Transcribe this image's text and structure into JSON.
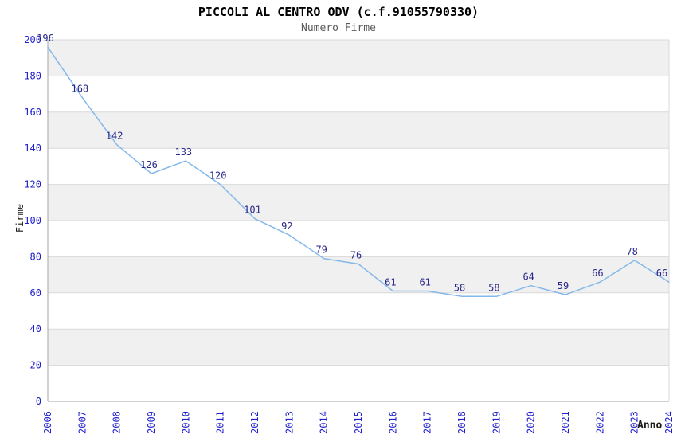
{
  "header": {
    "title": "PICCOLI AL CENTRO ODV (c.f.91055790330)",
    "subtitle": "Numero Firme"
  },
  "axes": {
    "y_label": "Firme",
    "x_label": "Anno"
  },
  "chart_data": {
    "type": "line",
    "title": "PICCOLI AL CENTRO ODV (c.f.91055790330)",
    "subtitle": "Numero Firme",
    "xlabel": "Anno",
    "ylabel": "Firme",
    "x": [
      "2006",
      "2007",
      "2008",
      "2009",
      "2010",
      "2011",
      "2012",
      "2013",
      "2014",
      "2015",
      "2016",
      "2017",
      "2018",
      "2019",
      "2020",
      "2021",
      "2022",
      "2023",
      "2024"
    ],
    "series": [
      {
        "name": "Numero Firme",
        "values": [
          196,
          168,
          142,
          126,
          133,
          120,
          101,
          92,
          79,
          76,
          61,
          61,
          58,
          58,
          64,
          59,
          66,
          78,
          66
        ]
      }
    ],
    "ylim": [
      0,
      200
    ],
    "yticks": [
      0,
      20,
      40,
      60,
      80,
      100,
      120,
      140,
      160,
      180,
      200
    ],
    "data_labels": "on",
    "legend": "none",
    "grid": "horizontal-bands-alternating",
    "colors": {
      "line": "#85b8ea",
      "data_label": "#28288c",
      "tick_label": "#2020cc",
      "band": "#f0f0f0",
      "grid": "#d9d9d9",
      "axis": "#a6a6a6",
      "title": "#000000",
      "subtitle": "#5a5a5a",
      "background": "#ffffff"
    }
  }
}
